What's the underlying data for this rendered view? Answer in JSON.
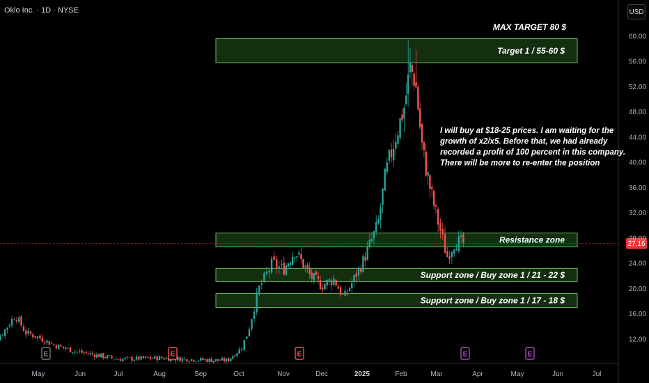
{
  "header": {
    "ticker": "Oklo Inc. · 1D · NYSE",
    "currency": "USD"
  },
  "colors": {
    "up": "#26a69a",
    "down": "#ef5350",
    "zone_fill": "#1b3d16",
    "zone_stroke": "#66bb57",
    "price_line": "#c62828",
    "price_tag": "#e53935"
  },
  "chart_data": {
    "type": "candlestick",
    "title": "Oklo Inc. · 1D · NYSE",
    "x_ticks": [
      "May",
      "Jun",
      "Jul",
      "Aug",
      "Sep",
      "Oct",
      "Nov",
      "Dec",
      "2025",
      "Feb",
      "Mar",
      "Apr",
      "May",
      "Jun",
      "Jul"
    ],
    "y_ticks": [
      "60.00",
      "56.00",
      "52.00",
      "48.00",
      "44.00",
      "40.00",
      "36.00",
      "32.00",
      "28.00",
      "24.00",
      "20.00",
      "16.00",
      "12.00"
    ],
    "ylim": [
      9,
      62
    ],
    "current_price": "27.16",
    "price_series": [
      {
        "month": "May 2024",
        "close": 15
      },
      {
        "month": "Jun 2024",
        "close": 10
      },
      {
        "month": "Jul 2024",
        "close": 8.5
      },
      {
        "month": "Aug 2024",
        "close": 8.5
      },
      {
        "month": "Sep 2024",
        "close": 8.5
      },
      {
        "month": "Oct 2024",
        "close": 21
      },
      {
        "month": "Nov 2024",
        "close": 24
      },
      {
        "month": "Dec 2024",
        "close": 21
      },
      {
        "month": "Jan 2025",
        "close": 26
      },
      {
        "month": "Feb 2025",
        "close": 55
      },
      {
        "month": "Mar 2025",
        "close": 25
      },
      {
        "month": "Mar 2025 end",
        "close": 27.16
      }
    ],
    "zones": [
      {
        "label": "Target 1 / 55-60 $",
        "low": 55.8,
        "high": 59.6
      },
      {
        "label": "Resistance zone",
        "low": 26.6,
        "high": 28.8
      },
      {
        "label": "Support zone / Buy zone 1 / 21 - 22 $",
        "low": 21.1,
        "high": 23.2
      },
      {
        "label": "Support zone / Buy zone 1 / 17 - 18 $",
        "low": 17.0,
        "high": 19.2
      }
    ],
    "annotations": {
      "max_target": "MAX TARGET 80 $",
      "note": [
        "I will buy at $18-25 prices. I am waiting for the",
        "growth of x2/x5. Before that, we had already",
        "recorded a profit of 100 percent in this company.",
        "There will be more to re-enter the position"
      ]
    },
    "event_markers": [
      {
        "label": "E",
        "month": "May 2024",
        "color": "#787b86"
      },
      {
        "label": "E",
        "month": "Aug 2024",
        "color": "#ef5350"
      },
      {
        "label": "E",
        "month": "Nov 2024",
        "color": "#ef5350"
      },
      {
        "label": "E",
        "month": "Mar 2025",
        "color": "#ab47bc"
      },
      {
        "label": "E",
        "month": "May 2025",
        "color": "#ab47bc"
      }
    ]
  }
}
